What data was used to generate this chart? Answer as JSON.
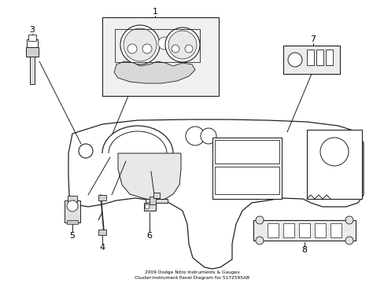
{
  "title": "2009 Dodge Nitro Instruments & Gauges\nCluster-Instrument Panel Diagram for 5172595AB",
  "bg_color": "#ffffff",
  "line_color": "#231f20",
  "fill_dash": "#f2f2f2",
  "fill_gray": "#e0e0e0"
}
